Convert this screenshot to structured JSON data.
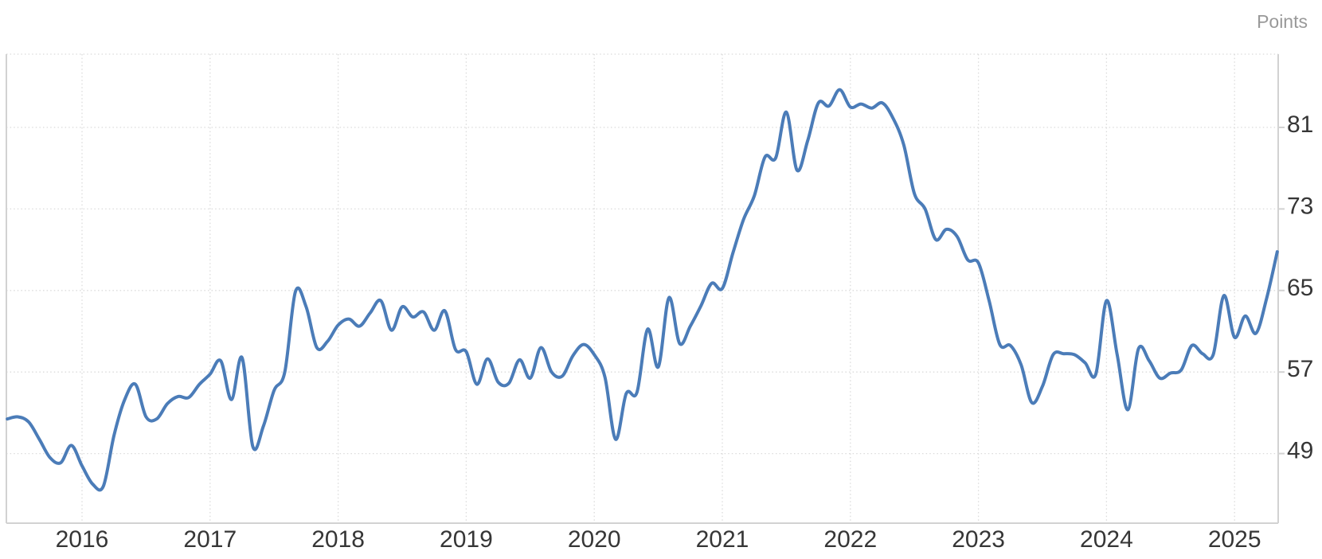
{
  "page": {
    "background": "#ffffff"
  },
  "chart_data": {
    "type": "line",
    "title": "",
    "xlabel": "",
    "ylabel": "Points",
    "legend_position": "none",
    "grid": true,
    "x_tick_labels": [
      "2016",
      "2017",
      "2018",
      "2019",
      "2020",
      "2021",
      "2022",
      "2023",
      "2024",
      "2025"
    ],
    "y_ticks": [
      81,
      73,
      65,
      57,
      49
    ],
    "y_tick_labels": [
      "81",
      "73",
      "65",
      "57",
      "49"
    ],
    "ylim": [
      42.2,
      88.2
    ],
    "x": [
      "2015-06",
      "2015-07",
      "2015-08",
      "2015-09",
      "2015-10",
      "2015-11",
      "2015-12",
      "2016-01",
      "2016-02",
      "2016-03",
      "2016-04",
      "2016-05",
      "2016-06",
      "2016-07",
      "2016-08",
      "2016-09",
      "2016-10",
      "2016-11",
      "2016-12",
      "2017-01",
      "2017-02",
      "2017-03",
      "2017-04",
      "2017-05",
      "2017-06",
      "2017-07",
      "2017-08",
      "2017-09",
      "2017-10",
      "2017-11",
      "2017-12",
      "2018-01",
      "2018-02",
      "2018-03",
      "2018-04",
      "2018-05",
      "2018-06",
      "2018-07",
      "2018-08",
      "2018-09",
      "2018-10",
      "2018-11",
      "2018-12",
      "2019-01",
      "2019-02",
      "2019-03",
      "2019-04",
      "2019-05",
      "2019-06",
      "2019-07",
      "2019-08",
      "2019-09",
      "2019-10",
      "2019-11",
      "2019-12",
      "2020-01",
      "2020-02",
      "2020-03",
      "2020-04",
      "2020-05",
      "2020-06",
      "2020-07",
      "2020-08",
      "2020-09",
      "2020-10",
      "2020-11",
      "2020-12",
      "2021-01",
      "2021-02",
      "2021-03",
      "2021-04",
      "2021-05",
      "2021-06",
      "2021-07",
      "2021-08",
      "2021-09",
      "2021-10",
      "2021-11",
      "2021-12",
      "2022-01",
      "2022-02",
      "2022-03",
      "2022-04",
      "2022-05",
      "2022-06",
      "2022-07",
      "2022-08",
      "2022-09",
      "2022-10",
      "2022-11",
      "2022-12",
      "2023-01",
      "2023-02",
      "2023-03",
      "2023-04",
      "2023-05",
      "2023-06",
      "2023-07",
      "2023-08",
      "2023-09",
      "2023-10",
      "2023-11",
      "2023-12",
      "2024-01",
      "2024-02",
      "2024-03",
      "2024-04",
      "2024-05",
      "2024-06",
      "2024-07",
      "2024-08",
      "2024-09",
      "2024-10",
      "2024-11",
      "2024-12",
      "2025-01",
      "2025-02",
      "2025-03",
      "2025-04",
      "2025-05"
    ],
    "series": [
      {
        "name": "Points",
        "values": [
          52.4,
          52.6,
          52.1,
          50.4,
          48.6,
          48.1,
          49.8,
          47.8,
          46.0,
          45.8,
          50.8,
          54.3,
          55.8,
          52.6,
          52.4,
          53.9,
          54.6,
          54.5,
          55.8,
          56.8,
          58.1,
          54.3,
          58.4,
          49.7,
          51.7,
          55.2,
          57.0,
          64.9,
          63.4,
          59.4,
          60.0,
          61.6,
          62.2,
          61.5,
          62.8,
          64.0,
          61.1,
          63.4,
          62.4,
          62.9,
          61.1,
          63.0,
          59.2,
          59.0,
          55.8,
          58.3,
          56.0,
          55.9,
          58.2,
          56.4,
          59.4,
          57.0,
          56.6,
          58.6,
          59.7,
          58.7,
          56.5,
          50.4,
          54.9,
          55.0,
          61.2,
          57.5,
          64.3,
          59.8,
          61.5,
          63.5,
          65.7,
          65.2,
          68.7,
          72.0,
          74.3,
          78.1,
          78.0,
          82.5,
          76.8,
          79.7,
          83.4,
          83.1,
          84.7,
          83.0,
          83.3,
          82.9,
          83.4,
          81.9,
          79.3,
          74.5,
          73.0,
          70.0,
          71.0,
          70.3,
          68.0,
          67.7,
          64.0,
          59.7,
          59.6,
          57.7,
          54.0,
          55.6,
          58.7,
          58.8,
          58.7,
          57.9,
          56.8,
          64.0,
          58.7,
          53.3,
          59.3,
          58.1,
          56.4,
          56.9,
          57.2,
          59.6,
          58.8,
          58.7,
          64.5,
          60.4,
          62.5,
          60.8,
          64.2,
          68.8
        ]
      }
    ],
    "colors": {
      "line": "#4b7cb8",
      "grid": "#dbdbdb",
      "axis": "#d2d2d2",
      "tick_text": "#363636",
      "unit_text": "#999999",
      "background": "#ffffff"
    }
  }
}
